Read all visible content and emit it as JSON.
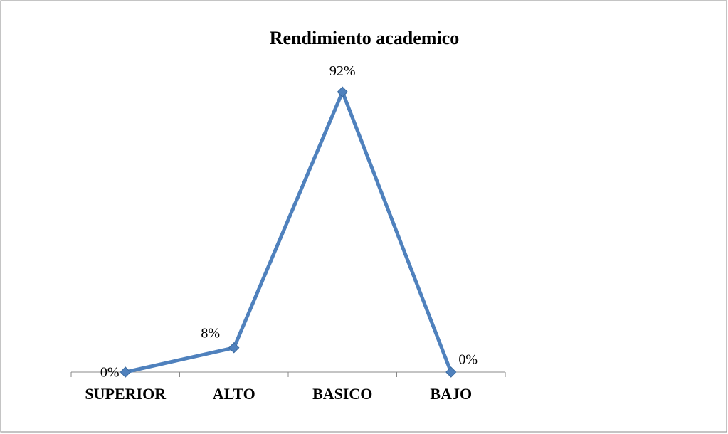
{
  "chart_data": {
    "type": "line",
    "title": "Rendimiento academico",
    "categories": [
      "SUPERIOR",
      "ALTO",
      "BASICO",
      "BAJO"
    ],
    "values": [
      0,
      8,
      92,
      0
    ],
    "value_labels": [
      "0%",
      "8%",
      "92%",
      "0%"
    ],
    "color": "#4f81bd",
    "ylim": [
      0,
      100
    ]
  }
}
